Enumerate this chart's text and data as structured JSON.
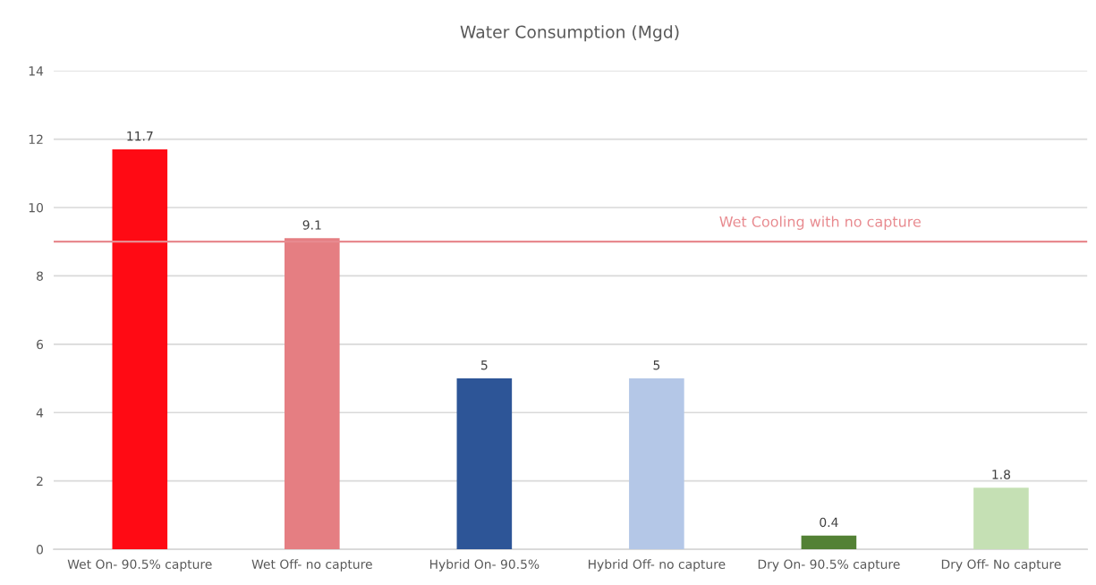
{
  "chart_data": {
    "type": "bar",
    "title": "Water Consumption (Mgd)",
    "categories": [
      "Wet On- 90.5% capture",
      "Wet Off- no capture",
      "Hybrid On- 90.5%",
      "Hybrid Off- no capture",
      "Dry On- 90.5% capture",
      "Dry Off- No capture"
    ],
    "values": [
      11.7,
      9.1,
      5,
      5,
      0.4,
      1.8
    ],
    "colors": [
      "#ff0a14",
      "#e57e82",
      "#2d5597",
      "#b4c7e7",
      "#538135",
      "#c5e0b4"
    ],
    "ylim": [
      0,
      14
    ],
    "yticks": [
      0,
      2,
      4,
      6,
      8,
      10,
      12,
      14
    ],
    "grid": "y",
    "data_labels": true,
    "ref_lines": [
      {
        "axis": "y",
        "value": 9.0,
        "label": "Wet Cooling with no capture",
        "color": "#e88a8f"
      }
    ]
  }
}
